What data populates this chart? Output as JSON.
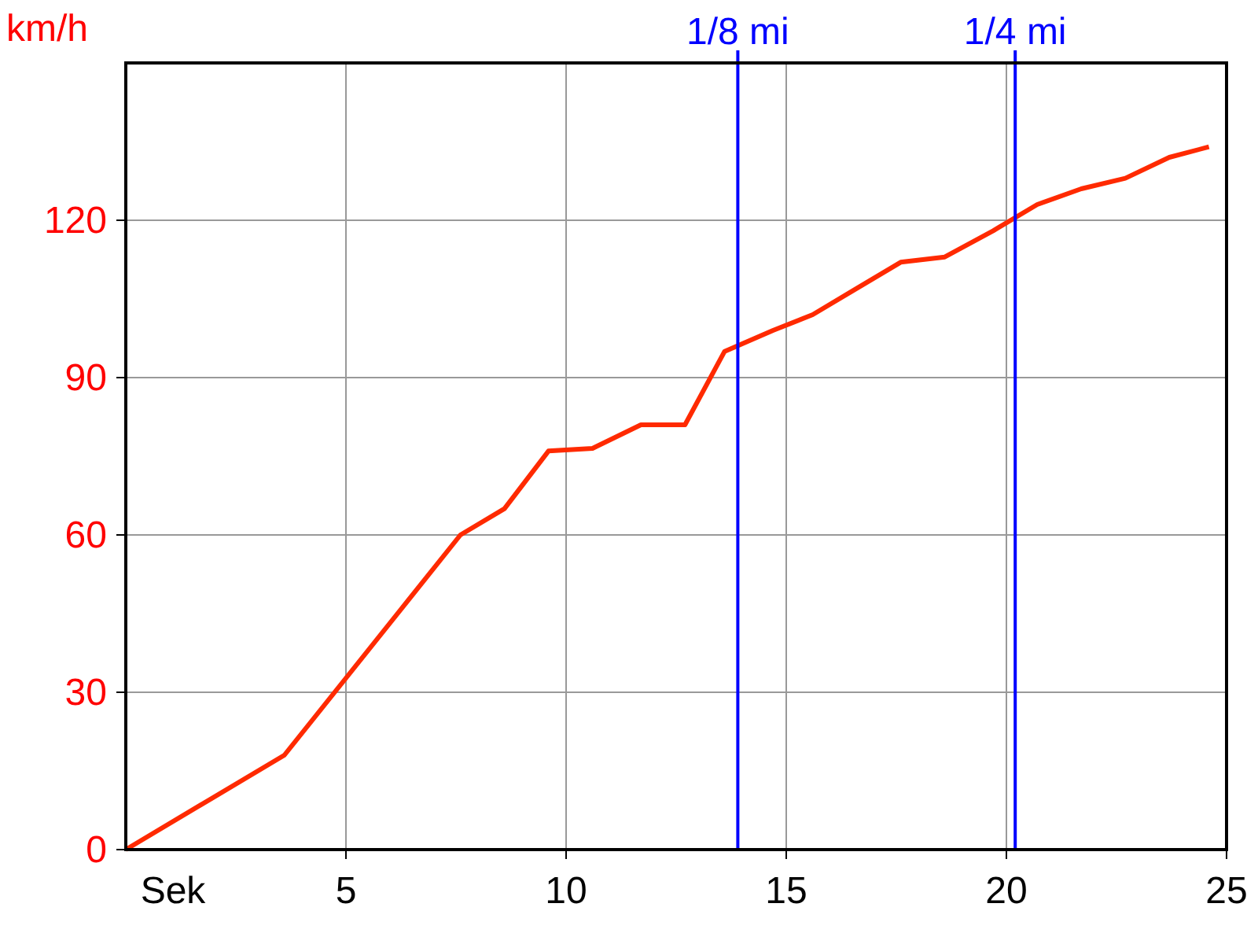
{
  "chart_data": {
    "type": "line",
    "xlabel": "Sek",
    "ylabel": "km/h",
    "x": [
      0,
      3.6,
      7.6,
      8.6,
      9.6,
      10.6,
      11.7,
      12.7,
      13.6,
      14.7,
      15.6,
      16.6,
      17.6,
      18.6,
      19.7,
      20.7,
      21.7,
      22.7,
      23.7,
      24.6
    ],
    "series": [
      {
        "color": "#ff2a00",
        "values": [
          0,
          18,
          60,
          65,
          76,
          76.5,
          81,
          81,
          95,
          99,
          102,
          107,
          112,
          113,
          118,
          123,
          126,
          128,
          132,
          134
        ]
      }
    ],
    "xlim": [
      0,
      25
    ],
    "xticks": [
      5,
      10,
      15,
      20,
      25
    ],
    "ylim": [
      0,
      150
    ],
    "yticks": [
      0,
      30,
      60,
      90,
      120
    ],
    "grid": true,
    "ref_lines": [
      {
        "axis": "x",
        "value": 13.9,
        "label": "1/8 mi",
        "color": "#0000ff"
      },
      {
        "axis": "x",
        "value": 20.2,
        "label": "1/4 mi",
        "color": "#0000ff"
      }
    ]
  }
}
